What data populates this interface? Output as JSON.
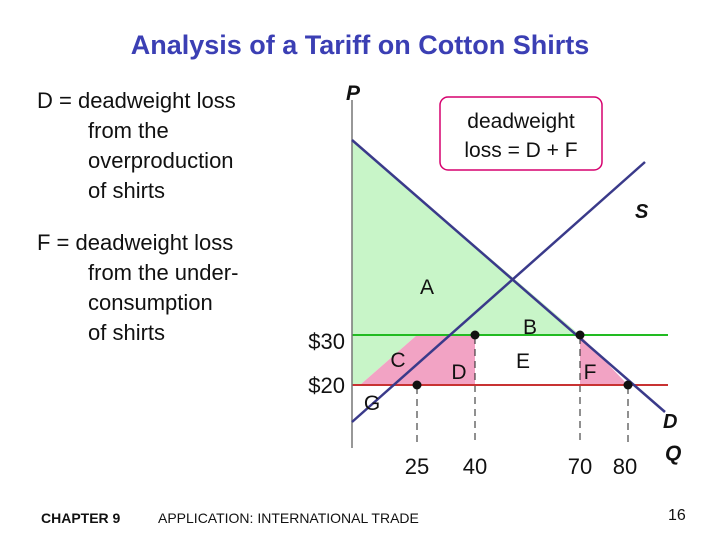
{
  "title": "Analysis of a Tariff on Cotton Shirts",
  "notes": {
    "d_lines": [
      "D = deadweight loss",
      "from the",
      "overproduction",
      "of shirts"
    ],
    "f_lines": [
      "F = deadweight loss",
      "from the under-",
      "consumption",
      "of shirts"
    ]
  },
  "callout": {
    "lines": [
      "deadweight",
      "loss = D + F"
    ],
    "border_color": "#d6006e"
  },
  "axes": {
    "y_label": "P",
    "x_label": "Q",
    "supply_label": "S",
    "demand_label": "D"
  },
  "prices": {
    "p1": {
      "label": "$30",
      "value": 30
    },
    "p2": {
      "label": "$20",
      "value": 20
    }
  },
  "quantities": [
    {
      "label": "25",
      "value": 25
    },
    {
      "label": "40",
      "value": 40
    },
    {
      "label": "70",
      "value": 70
    },
    {
      "label": "80",
      "value": 80
    }
  ],
  "regions": {
    "A": "A",
    "B": "B",
    "C": "C",
    "D": "D",
    "E": "E",
    "F": "F",
    "G": "G"
  },
  "colors": {
    "surplus_green": "#c8f5c8",
    "deadweight_pink": "#f2a3c4",
    "price_line_green": "#22bb22",
    "price_line_red": "#c83232",
    "curve": "#3a3a8a",
    "title": "#3b3fb4"
  },
  "footer": {
    "chapter": "CHAPTER 9",
    "course": "APPLICATION: INTERNATIONAL TRADE",
    "page": "16"
  }
}
